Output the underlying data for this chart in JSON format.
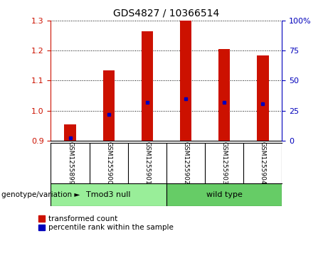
{
  "title": "GDS4827 / 10366514",
  "samples": [
    "GSM1255899",
    "GSM1255900",
    "GSM1255901",
    "GSM1255902",
    "GSM1255903",
    "GSM1255904"
  ],
  "transformed_counts": [
    0.955,
    1.135,
    1.265,
    1.3,
    1.205,
    1.185
  ],
  "percentile_ranks_pct": [
    2.0,
    22.0,
    32.0,
    35.0,
    32.0,
    31.0
  ],
  "bar_bottom": 0.9,
  "ylim_left": [
    0.9,
    1.3
  ],
  "ylim_right": [
    0.0,
    100.0
  ],
  "yticks_left": [
    0.9,
    1.0,
    1.1,
    1.2,
    1.3
  ],
  "yticks_right": [
    0,
    25,
    50,
    75,
    100
  ],
  "ytick_labels_right": [
    "0",
    "25",
    "50",
    "75",
    "100%"
  ],
  "bar_color": "#CC1100",
  "dot_color": "#0000BB",
  "group1_label": "Tmod3 null",
  "group2_label": "wild type",
  "group1_indices": [
    0,
    1,
    2
  ],
  "group2_indices": [
    3,
    4,
    5
  ],
  "group1_color": "#99EE99",
  "group2_color": "#66CC66",
  "group_row_label": "genotype/variation",
  "legend1": "transformed count",
  "legend2": "percentile rank within the sample",
  "bg_color": "#FFFFFF",
  "tick_label_color_left": "#CC1100",
  "tick_label_color_right": "#0000BB",
  "sample_bg_color": "#BBBBBB",
  "bar_width": 0.3,
  "title_fontsize": 10
}
